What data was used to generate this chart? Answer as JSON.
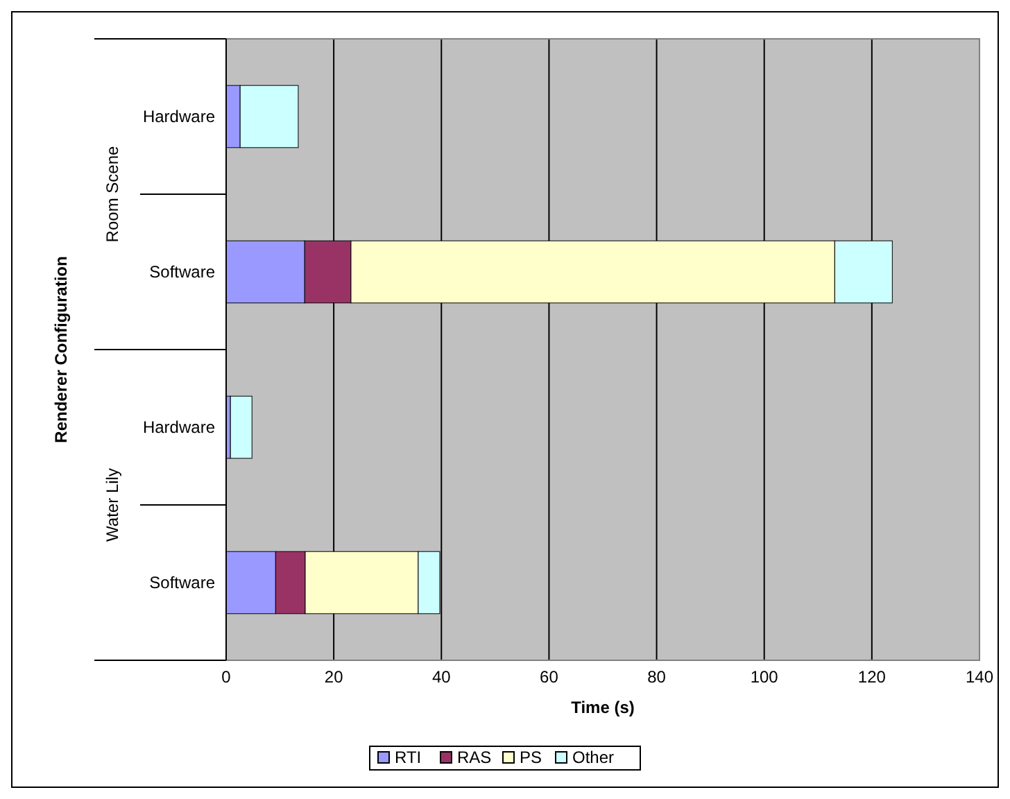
{
  "chart_data": {
    "type": "bar",
    "orientation": "horizontal",
    "stacked": true,
    "xlabel": "Time (s)",
    "ylabel": "Renderer Configuration",
    "categories": [
      "Hardware",
      "Software",
      "Hardware",
      "Software"
    ],
    "annotations": [
      "Room Scene",
      "Water Lily"
    ],
    "series": [
      {
        "name": "RTI",
        "color": "#9999ff",
        "values": [
          2.6,
          14.6,
          0.8,
          9.2
        ]
      },
      {
        "name": "RAS",
        "color": "#993366",
        "values": [
          null,
          8.6,
          null,
          5.5
        ]
      },
      {
        "name": "PS",
        "color": "#ffffcc",
        "values": [
          null,
          89.9,
          null,
          21.0
        ]
      },
      {
        "name": "Other",
        "color": "#ccffff",
        "values": [
          10.8,
          10.7,
          4.0,
          4.0
        ]
      }
    ],
    "xlim": [
      0,
      140
    ],
    "xticks": [
      0,
      20,
      40,
      60,
      80,
      100,
      120,
      140
    ],
    "grid": "x",
    "legend": "bottom"
  }
}
